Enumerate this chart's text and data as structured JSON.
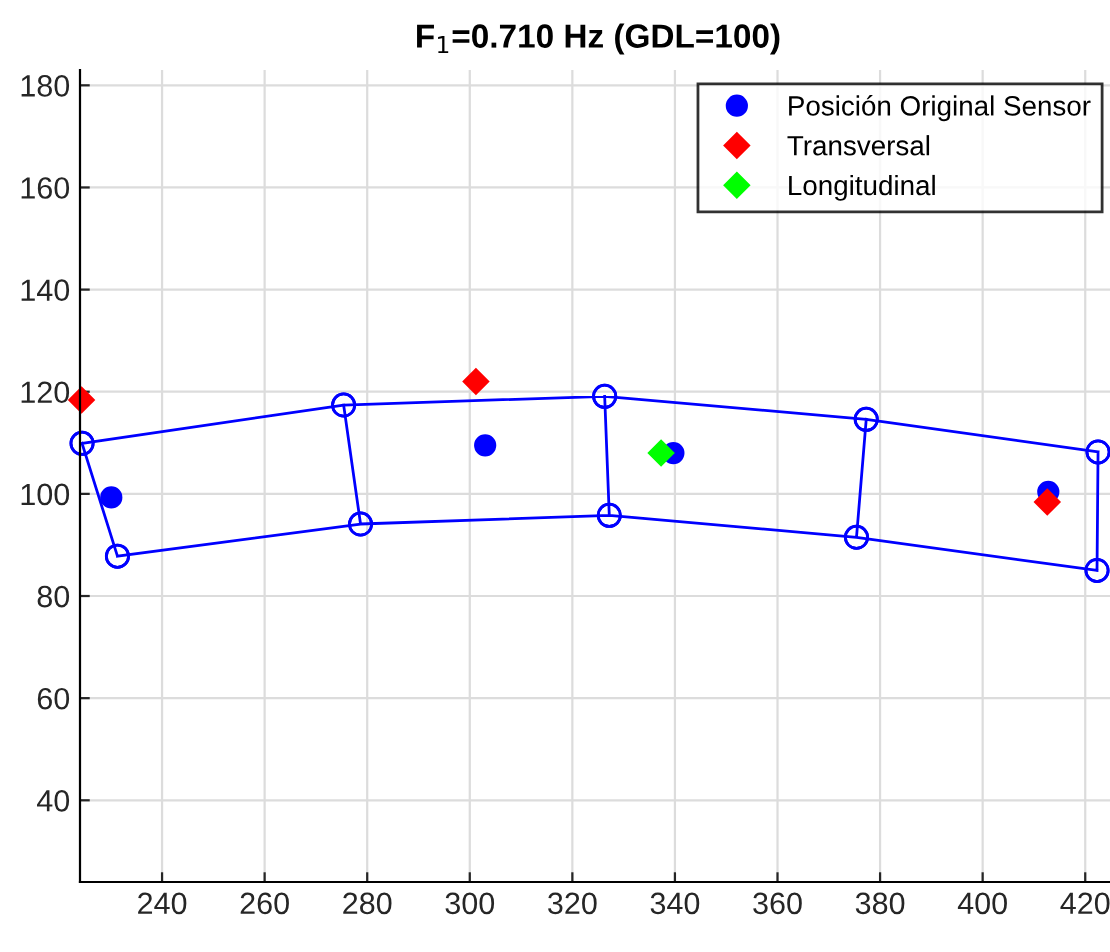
{
  "chart_data": {
    "type": "line",
    "title": "F$_{1}$=0.710 Hz (GDL=100)",
    "xlim": [
      224,
      426
    ],
    "xticks": [
      240,
      260,
      280,
      300,
      320,
      340,
      360,
      380,
      400,
      420
    ],
    "ylim": [
      24,
      183
    ],
    "yticks": [
      40,
      60,
      80,
      100,
      120,
      140,
      160,
      180
    ],
    "grid": true,
    "legend": "top right",
    "series": [
      {
        "color": "#0000ff",
        "marker": "circle",
        "x": [
          224.4,
          275.4,
          326.3,
          377.3,
          422.5,
          null,
          231.3,
          278.7,
          327.2,
          375.4,
          422.3,
          null,
          224.4,
          231.3,
          null,
          275.4,
          278.7,
          null,
          326.3,
          327.2,
          null,
          377.3,
          375.4,
          null,
          422.5,
          422.3
        ],
        "values": [
          109.9,
          117.4,
          119.1,
          114.6,
          108.2,
          null,
          87.8,
          94.1,
          95.8,
          91.5,
          85.0,
          null,
          109.9,
          87.8,
          null,
          117.4,
          94.1,
          null,
          119.1,
          95.8,
          null,
          114.6,
          91.5,
          null,
          108.2,
          85.0
        ]
      },
      {
        "type": "scatter",
        "name": "Posición Original Sensor",
        "color": "#0000ff",
        "marker": "circle",
        "x": [
          230.1,
          303.0,
          339.7,
          412.8
        ],
        "values": [
          99.3,
          109.5,
          108.0,
          100.4
        ]
      },
      {
        "type": "scatter",
        "name": "Transversal",
        "color": "#ff0000",
        "marker": "diamond",
        "x": [
          224.3,
          301.2,
          412.6
        ],
        "values": [
          118.4,
          122.0,
          98.4
        ]
      },
      {
        "type": "scatter",
        "name": "Longitudinal",
        "color": "#00ff00",
        "marker": "diamond",
        "x": [
          337.3
        ],
        "values": [
          108.0
        ]
      }
    ]
  }
}
